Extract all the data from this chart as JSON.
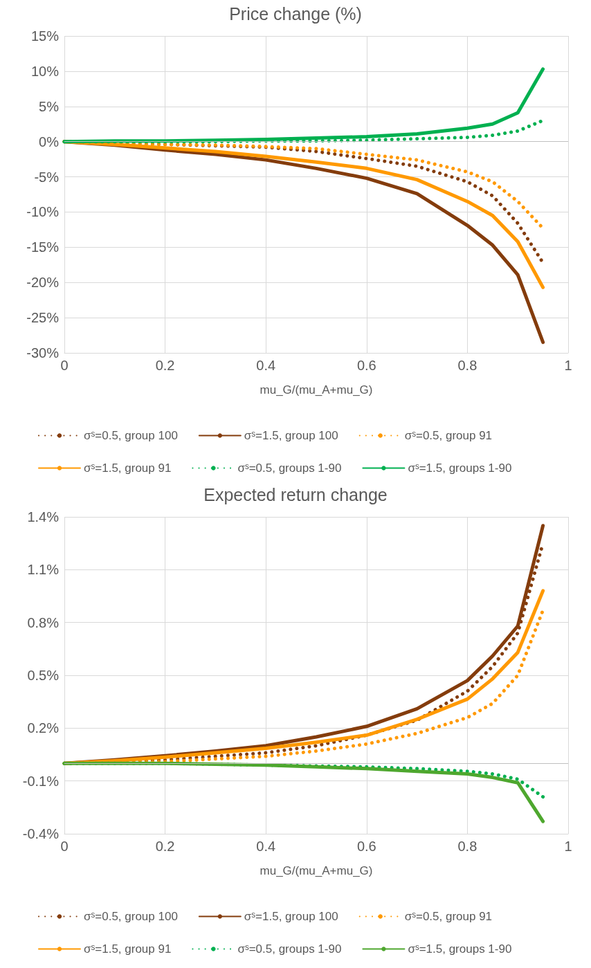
{
  "chart_data": [
    {
      "type": "line",
      "title": "Price change (%)",
      "xlabel": "mu_G/(mu_A+mu_G)",
      "x": [
        0,
        0.1,
        0.2,
        0.3,
        0.4,
        0.5,
        0.6,
        0.7,
        0.8,
        0.85,
        0.9,
        0.95
      ],
      "xlim": [
        0,
        1
      ],
      "xticks": [
        0,
        0.2,
        0.4,
        0.6,
        0.8,
        1
      ],
      "ylim": [
        -30,
        15
      ],
      "yticks": [
        {
          "value": -30,
          "label": "-30%"
        },
        {
          "value": -25,
          "label": "-25%"
        },
        {
          "value": -20,
          "label": "-20%"
        },
        {
          "value": -15,
          "label": "-15%"
        },
        {
          "value": -10,
          "label": "-10%"
        },
        {
          "value": -5,
          "label": "-5%"
        },
        {
          "value": 0,
          "label": "0%"
        },
        {
          "value": 5,
          "label": "5%"
        },
        {
          "value": 10,
          "label": "10%"
        },
        {
          "value": 15,
          "label": "15%"
        }
      ],
      "grid": true,
      "legend": "bottom",
      "marker": "none",
      "series": [
        {
          "name": "σˢ=0.5, group 100",
          "color": "#843c0c",
          "line_style": "dotted",
          "values": [
            0,
            -0.2,
            -0.4,
            -0.6,
            -0.8,
            -1.4,
            -2.4,
            -3.5,
            -5.7,
            -7.7,
            -11.6,
            -17.2
          ]
        },
        {
          "name": "σˢ=1.5, group 100",
          "color": "#843c0c",
          "line_style": "solid",
          "values": [
            0,
            -0.5,
            -1.2,
            -1.8,
            -2.6,
            -3.8,
            -5.2,
            -7.4,
            -11.9,
            -14.7,
            -18.9,
            -28.5
          ]
        },
        {
          "name": "σˢ=0.5, group 91",
          "color": "#ff9900",
          "line_style": "dotted",
          "values": [
            0,
            -0.2,
            -0.4,
            -0.5,
            -0.7,
            -1.0,
            -1.8,
            -2.6,
            -4.3,
            -5.7,
            -8.5,
            -12.3
          ]
        },
        {
          "name": "σˢ=1.5, group 91",
          "color": "#ff9900",
          "line_style": "solid",
          "values": [
            0,
            -0.4,
            -0.9,
            -1.4,
            -2.1,
            -2.9,
            -3.8,
            -5.4,
            -8.5,
            -10.5,
            -14.2,
            -20.7
          ]
        },
        {
          "name": "σˢ=0.5, groups 1-90",
          "color": "#00b050",
          "line_style": "dotted",
          "values": [
            0,
            0,
            0,
            0,
            0.1,
            0.1,
            0.2,
            0.4,
            0.6,
            0.9,
            1.5,
            3.0
          ]
        },
        {
          "name": "σˢ=1.5, groups 1-90",
          "color": "#00b050",
          "line_style": "solid",
          "values": [
            0,
            0.1,
            0.1,
            0.2,
            0.3,
            0.5,
            0.7,
            1.1,
            1.9,
            2.5,
            4.1,
            10.3
          ]
        }
      ]
    },
    {
      "type": "line",
      "title": "Expected return change",
      "xlabel": "mu_G/(mu_A+mu_G)",
      "x": [
        0,
        0.1,
        0.2,
        0.3,
        0.4,
        0.5,
        0.6,
        0.7,
        0.8,
        0.85,
        0.9,
        0.95
      ],
      "xlim": [
        0,
        1
      ],
      "xticks": [
        0,
        0.2,
        0.4,
        0.6,
        0.8,
        1
      ],
      "ylim": [
        -0.4,
        1.4
      ],
      "yticks": [
        {
          "value": -0.4,
          "label": "-0.4%"
        },
        {
          "value": -0.1,
          "label": "-0.1%"
        },
        {
          "value": 0.2,
          "label": "0.2%"
        },
        {
          "value": 0.5,
          "label": "0.5%"
        },
        {
          "value": 0.8,
          "label": "0.8%"
        },
        {
          "value": 1.1,
          "label": "1.1%"
        },
        {
          "value": 1.4,
          "label": "1.4%"
        }
      ],
      "grid": true,
      "legend": "bottom",
      "marker": "none",
      "series": [
        {
          "name": "σˢ=0.5, group 100",
          "color": "#843c0c",
          "line_style": "dotted",
          "values": [
            0,
            0.01,
            0.02,
            0.04,
            0.06,
            0.1,
            0.16,
            0.245,
            0.41,
            0.55,
            0.74,
            1.25
          ]
        },
        {
          "name": "σˢ=1.5, group 100",
          "color": "#843c0c",
          "line_style": "solid",
          "values": [
            0,
            0.02,
            0.043,
            0.07,
            0.1,
            0.15,
            0.21,
            0.31,
            0.47,
            0.61,
            0.78,
            1.35
          ]
        },
        {
          "name": "σˢ=0.5, group 91",
          "color": "#ff9900",
          "line_style": "dotted",
          "values": [
            0,
            0.005,
            0.01,
            0.025,
            0.04,
            0.07,
            0.11,
            0.17,
            0.26,
            0.34,
            0.5,
            0.87
          ]
        },
        {
          "name": "σˢ=1.5, group 91",
          "color": "#ff9900",
          "line_style": "solid",
          "values": [
            0,
            0.015,
            0.035,
            0.06,
            0.085,
            0.12,
            0.16,
            0.25,
            0.365,
            0.48,
            0.63,
            0.98
          ]
        },
        {
          "name": "σˢ=0.5, groups 1-90",
          "color": "#00b050",
          "line_style": "dotted",
          "values": [
            0,
            0,
            0,
            -0.005,
            -0.01,
            -0.015,
            -0.02,
            -0.03,
            -0.045,
            -0.06,
            -0.09,
            -0.19
          ]
        },
        {
          "name": "σˢ=1.5, groups 1-90",
          "color": "#4ea72e",
          "line_style": "solid",
          "values": [
            0,
            0,
            0,
            -0.005,
            -0.01,
            -0.02,
            -0.03,
            -0.045,
            -0.06,
            -0.08,
            -0.11,
            -0.33
          ]
        }
      ]
    }
  ]
}
